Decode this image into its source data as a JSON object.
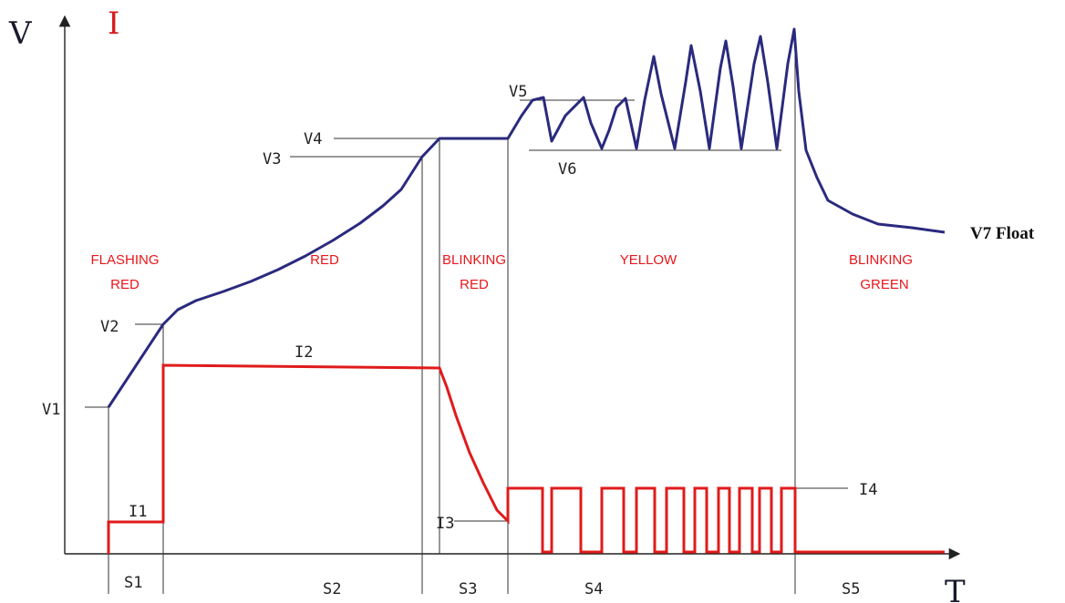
{
  "axes": {
    "voltage_symbol": "V",
    "current_symbol": "I",
    "time_symbol": "T"
  },
  "colors": {
    "voltage_curve": "#2a2a7e",
    "current_curve": "#e01b1b",
    "stage_text": "#e8161a",
    "guide_lines": "#333333"
  },
  "voltage_levels": {
    "v1": "V1",
    "v2": "V2",
    "v3": "V3",
    "v4": "V4",
    "v5": "V5",
    "v6": "V6",
    "v7": "V7 Float"
  },
  "current_levels": {
    "i1": "I1",
    "i2": "I2",
    "i3": "I3",
    "i4": "I4"
  },
  "stages": [
    {
      "id": "S1",
      "led_line1": "FLASHING",
      "led_line2": "RED"
    },
    {
      "id": "S2",
      "led_line1": "RED",
      "led_line2": ""
    },
    {
      "id": "S3",
      "led_line1": "BLINKING",
      "led_line2": "RED"
    },
    {
      "id": "S4",
      "led_line1": "YELLOW",
      "led_line2": ""
    },
    {
      "id": "S5",
      "led_line1": "BLINKING",
      "led_line2": "GREEN"
    }
  ]
}
